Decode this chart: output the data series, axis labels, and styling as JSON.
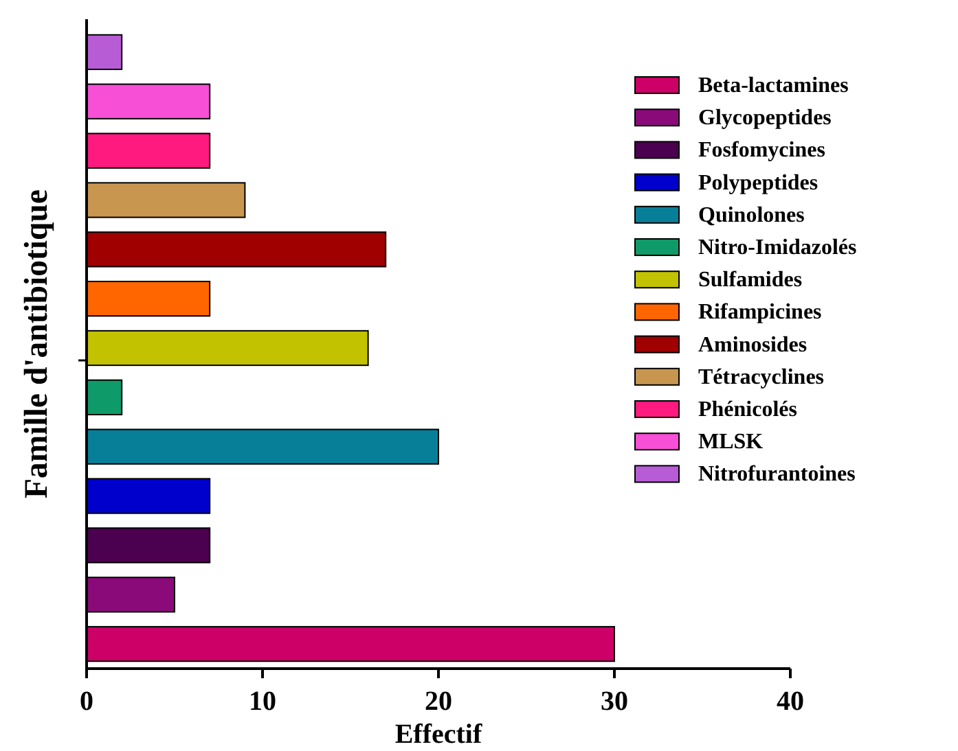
{
  "chart_data": {
    "type": "bar",
    "orientation": "horizontal",
    "xlabel": "Effectif",
    "ylabel": "Famille d'antibiotique",
    "categories": [
      null,
      null,
      null,
      null,
      null,
      null,
      null,
      null,
      null,
      null,
      null,
      null,
      null
    ],
    "series": [
      {
        "name": "Beta-lactamines",
        "color": "#cc0066",
        "values": [
          null,
          null,
          null,
          null,
          null,
          null,
          null,
          null,
          null,
          null,
          null,
          null,
          30
        ]
      },
      {
        "name": "Glycopeptides",
        "color": "#8b0a7a",
        "values": [
          null,
          null,
          null,
          null,
          null,
          null,
          null,
          null,
          null,
          null,
          null,
          5,
          null
        ]
      },
      {
        "name": "Fosfomycines",
        "color": "#4b0050",
        "values": [
          null,
          null,
          null,
          null,
          null,
          null,
          null,
          null,
          null,
          null,
          7,
          null,
          null
        ]
      },
      {
        "name": "Polypeptides",
        "color": "#0000cc",
        "values": [
          null,
          null,
          null,
          null,
          null,
          null,
          null,
          null,
          null,
          7,
          null,
          null,
          null
        ]
      },
      {
        "name": "Quinolones",
        "color": "#087f99",
        "values": [
          null,
          null,
          null,
          null,
          null,
          null,
          null,
          null,
          20,
          null,
          null,
          null,
          null
        ]
      },
      {
        "name": "Nitro-Imidazolés",
        "color": "#0f9a6a",
        "values": [
          null,
          null,
          null,
          null,
          null,
          null,
          null,
          2,
          null,
          null,
          null,
          null,
          null
        ]
      },
      {
        "name": "Sulfamides",
        "color": "#c2c200",
        "values": [
          null,
          null,
          null,
          null,
          null,
          null,
          16,
          null,
          null,
          null,
          null,
          null,
          null
        ]
      },
      {
        "name": "Rifampicines",
        "color": "#ff6600",
        "values": [
          null,
          null,
          null,
          null,
          null,
          7,
          null,
          null,
          null,
          null,
          null,
          null,
          null
        ]
      },
      {
        "name": "Aminosides",
        "color": "#a00000",
        "values": [
          null,
          null,
          null,
          null,
          17,
          null,
          null,
          null,
          null,
          null,
          null,
          null,
          null
        ]
      },
      {
        "name": "Tétracyclines",
        "color": "#c8964f",
        "values": [
          null,
          null,
          null,
          9,
          null,
          null,
          null,
          null,
          null,
          null,
          null,
          null,
          null
        ]
      },
      {
        "name": "Phénicolés",
        "color": "#ff1a80",
        "values": [
          null,
          null,
          7,
          null,
          null,
          null,
          null,
          null,
          null,
          null,
          null,
          null,
          null
        ]
      },
      {
        "name": "MLSK",
        "color": "#f74fd6",
        "values": [
          null,
          7,
          null,
          null,
          null,
          null,
          null,
          null,
          null,
          null,
          null,
          null,
          null
        ]
      },
      {
        "name": "Nitrofurantoines",
        "color": "#b85cd6",
        "values": [
          2,
          null,
          null,
          null,
          null,
          null,
          null,
          null,
          null,
          null,
          null,
          null,
          null
        ]
      }
    ],
    "xlim": [
      0,
      40
    ],
    "xticks": [
      0,
      10,
      20,
      30,
      40
    ],
    "legend": "right",
    "tick_labels": "x"
  }
}
